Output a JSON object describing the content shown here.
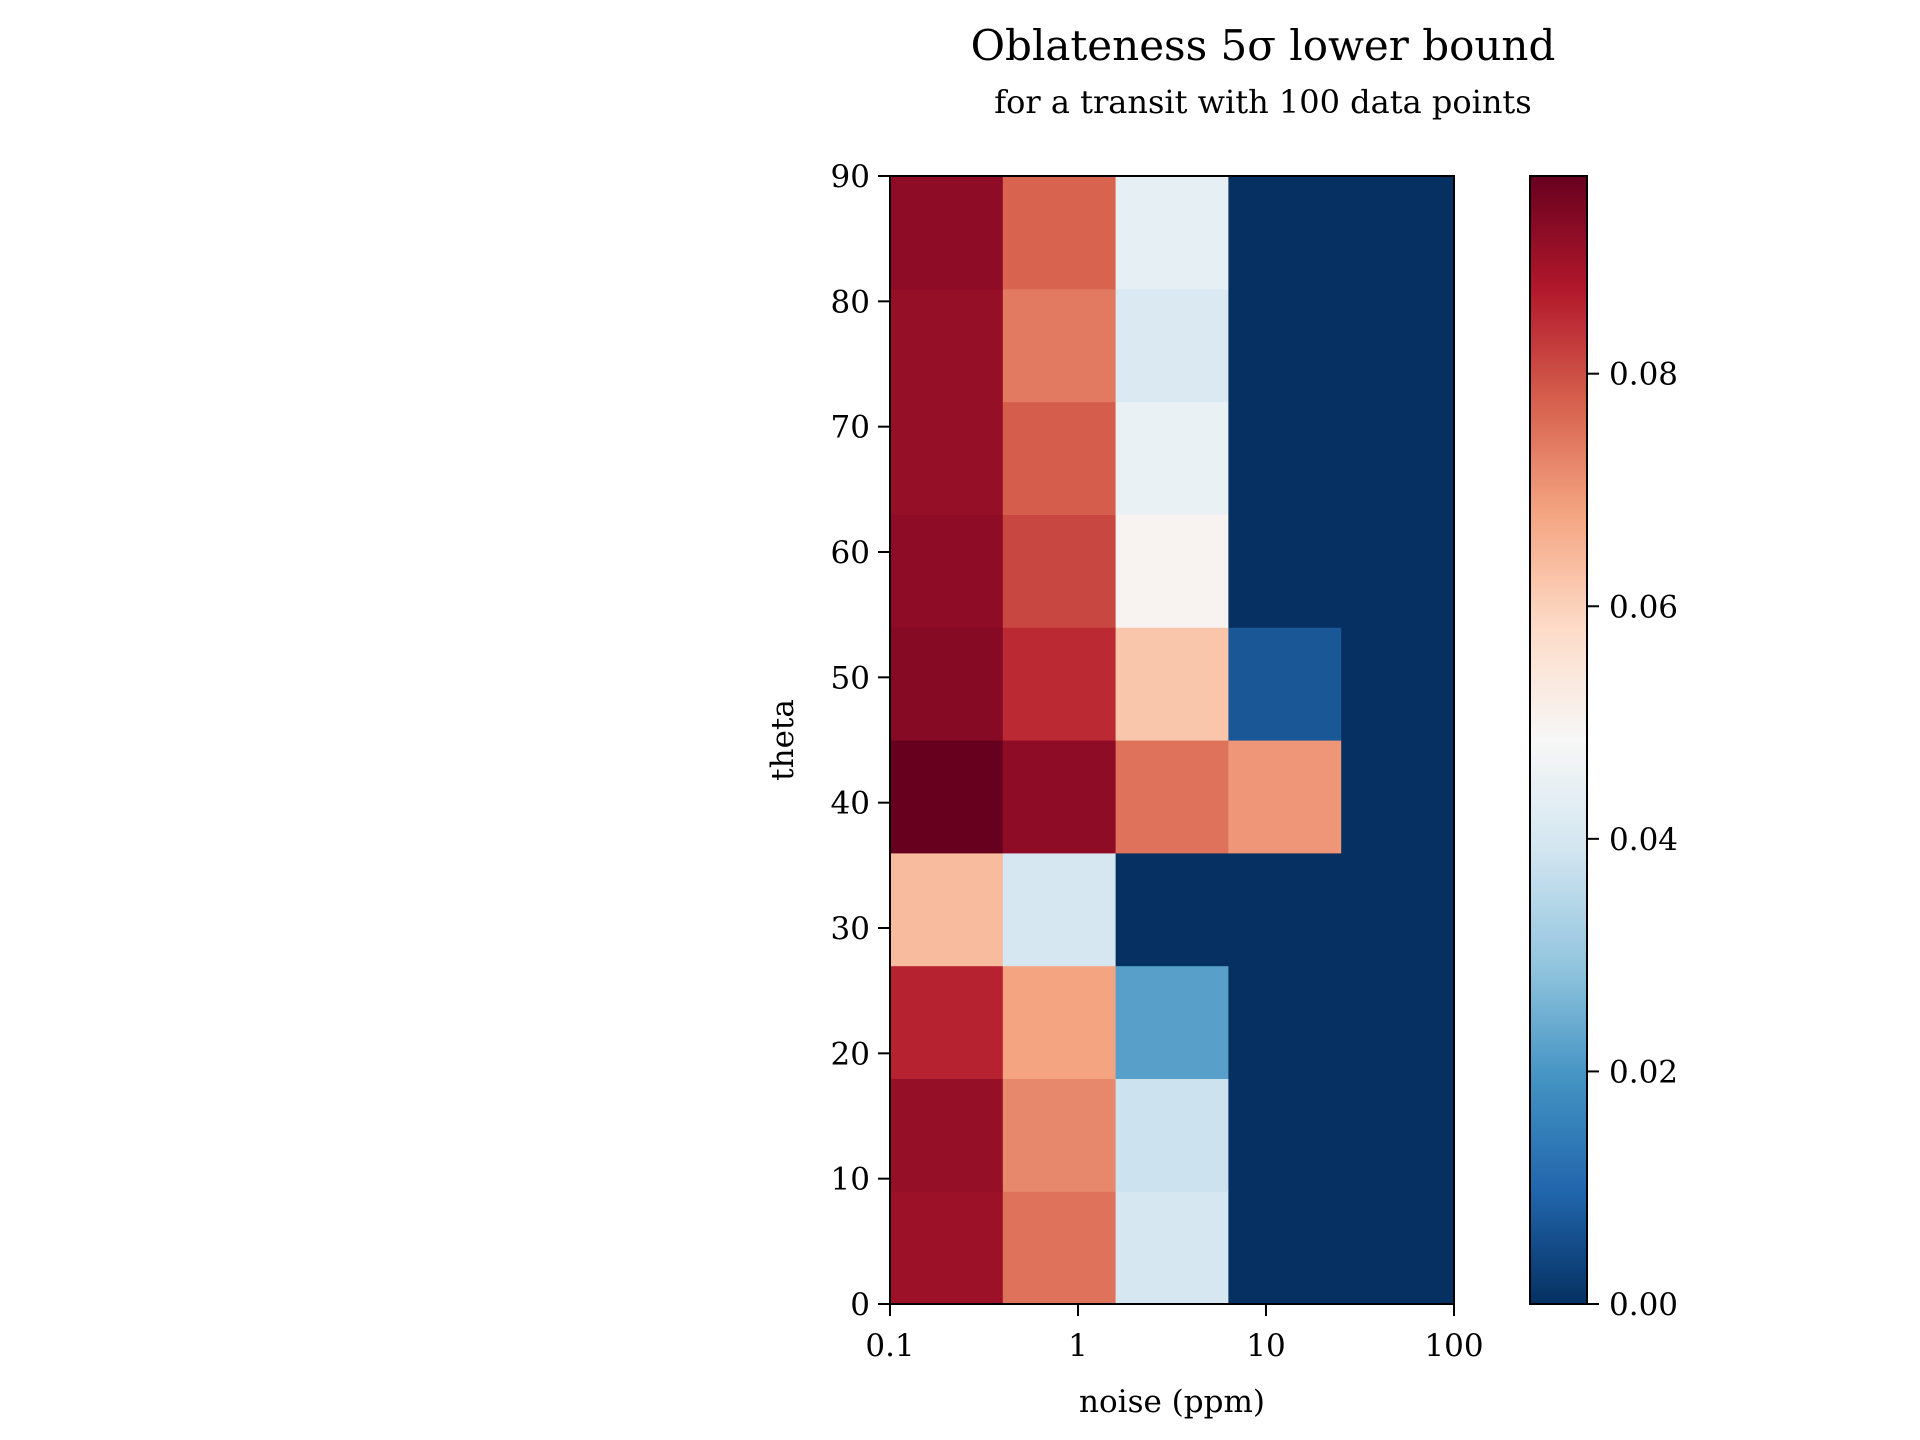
{
  "chart_data": {
    "type": "heatmap",
    "title": "Oblateness 5σ lower bound",
    "subtitle": "for a transit with 100 data points",
    "xlabel": "noise (ppm)",
    "ylabel": "theta",
    "x_scale": "log",
    "x_ticks": [
      "0.1",
      "1",
      "10",
      "100"
    ],
    "y_ticks": [
      "0",
      "10",
      "20",
      "30",
      "40",
      "50",
      "60",
      "70",
      "80",
      "90"
    ],
    "y_range": [
      0,
      90
    ],
    "colormap": "RdBu_r",
    "colorbar_range": [
      0,
      0.097
    ],
    "colorbar_ticks": [
      "0.00",
      "0.02",
      "0.04",
      "0.06",
      "0.08"
    ],
    "columns": 5,
    "rows": 10,
    "values": [
      [
        0.09,
        0.075,
        0.04,
        0.0,
        0.0
      ],
      [
        0.091,
        0.072,
        0.038,
        0.0,
        0.0
      ],
      [
        0.086,
        0.068,
        0.022,
        0.0,
        0.0
      ],
      [
        0.064,
        0.04,
        0.0,
        0.0,
        0.0
      ],
      [
        0.097,
        0.092,
        0.075,
        0.07,
        0.0
      ],
      [
        0.093,
        0.085,
        0.062,
        0.007,
        0.0
      ],
      [
        0.092,
        0.081,
        0.05,
        0.0,
        0.0
      ],
      [
        0.091,
        0.078,
        0.045,
        0.0,
        0.0
      ],
      [
        0.091,
        0.074,
        0.041,
        0.0,
        0.0
      ],
      [
        0.092,
        0.077,
        0.044,
        0.0,
        0.0
      ]
    ]
  }
}
